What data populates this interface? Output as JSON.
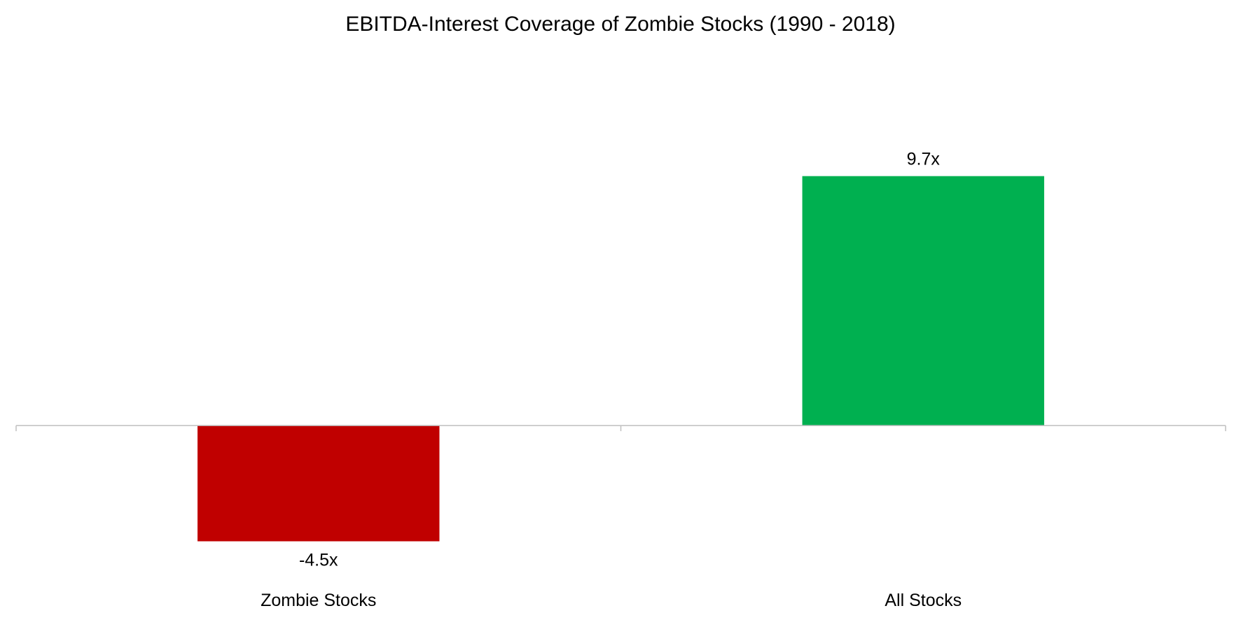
{
  "chart_data": {
    "type": "bar",
    "title": "EBITDA-Interest Coverage of Zombie Stocks (1990 - 2018)",
    "categories": [
      "Zombie Stocks",
      "All Stocks"
    ],
    "values": [
      -4.5,
      9.7
    ],
    "data_labels": [
      "-4.5x",
      "9.7x"
    ],
    "bar_colors": [
      "#C00000",
      "#00B050"
    ],
    "xlabel": "",
    "ylabel": "",
    "ylim": [
      -6.2,
      13.8
    ],
    "grid": false,
    "legend": "none",
    "axis_color": "#BFBFBF"
  }
}
